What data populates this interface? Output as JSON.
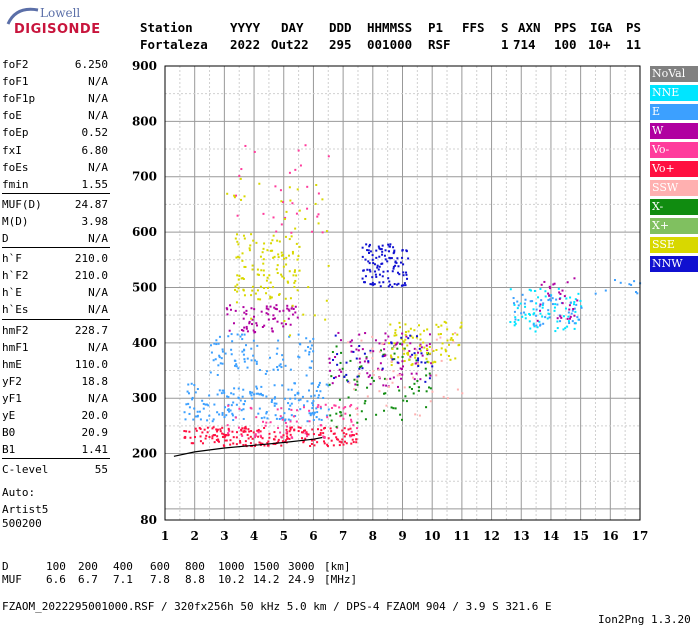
{
  "logo": {
    "brand": "Lowell",
    "product": "DIGISONDE"
  },
  "header": {
    "labels": [
      "Station",
      "YYYY",
      "DAY",
      "DDD",
      "HHMMSS",
      "P1",
      "FFS",
      "S",
      "AXN",
      "PPS",
      "IGA",
      "PS"
    ],
    "values": [
      "Fortaleza",
      "2022",
      "Out22",
      "295",
      "001000",
      "RSF",
      "",
      "1",
      "714",
      "100",
      "10+",
      "11"
    ]
  },
  "params": [
    {
      "k": "foF2",
      "v": "6.250"
    },
    {
      "k": "foF1",
      "v": "N/A"
    },
    {
      "k": "foF1p",
      "v": "N/A"
    },
    {
      "k": "foE",
      "v": "N/A"
    },
    {
      "k": "foEp",
      "v": "0.52"
    },
    {
      "k": "fxI",
      "v": "6.80"
    },
    {
      "k": "foEs",
      "v": "N/A"
    },
    {
      "k": "fmin",
      "v": "1.55"
    },
    {
      "k": "MUF(D)",
      "v": "24.87"
    },
    {
      "k": "M(D)",
      "v": "3.98"
    },
    {
      "k": "D",
      "v": "N/A"
    },
    {
      "k": "h`F",
      "v": "210.0"
    },
    {
      "k": "h`F2",
      "v": "210.0"
    },
    {
      "k": "h`E",
      "v": "N/A"
    },
    {
      "k": "h`Es",
      "v": "N/A"
    },
    {
      "k": "hmF2",
      "v": "228.7"
    },
    {
      "k": "hmF1",
      "v": "N/A"
    },
    {
      "k": "hmE",
      "v": "110.0"
    },
    {
      "k": "yF2",
      "v": "18.8"
    },
    {
      "k": "yF1",
      "v": "N/A"
    },
    {
      "k": "yE",
      "v": "20.0"
    },
    {
      "k": "B0",
      "v": "20.9"
    },
    {
      "k": "B1",
      "v": "1.41"
    },
    {
      "k": "C-level",
      "v": "55"
    }
  ],
  "auto": [
    "Auto:",
    "Artist5",
    "500200"
  ],
  "legend": [
    {
      "label": "NoVal",
      "color": "#808080"
    },
    {
      "label": "NNE",
      "color": "#00e5ff"
    },
    {
      "label": "E",
      "color": "#3ca0ff"
    },
    {
      "label": "W",
      "color": "#b000a0"
    },
    {
      "label": "Vo-",
      "color": "#ff3c9c"
    },
    {
      "label": "Vo+",
      "color": "#ff1040"
    },
    {
      "label": "SSW",
      "color": "#ffb0b0"
    },
    {
      "label": "X-",
      "color": "#108c10"
    },
    {
      "label": "X+",
      "color": "#80c060"
    },
    {
      "label": "SSE",
      "color": "#d8d800"
    },
    {
      "label": "NNW",
      "color": "#1010d0"
    }
  ],
  "footer": {
    "d_label": "D",
    "d_values": [
      "100",
      "200",
      "400",
      "600",
      "800",
      "1000",
      "1500",
      "3000",
      "[km]"
    ],
    "muf_label": "MUF",
    "muf_values": [
      "6.6",
      "6.7",
      "7.1",
      "7.8",
      "8.8",
      "10.2",
      "14.2",
      "24.9",
      "[MHz]"
    ],
    "file_line": "FZAOM_2022295001000.RSF / 320fx256h 50 kHz 5.0 km / DPS-4 FZAOM 904 / 3.9 S 321.6 E",
    "version": "Ion2Png 1.3.20"
  },
  "chart_data": {
    "type": "scatter",
    "xlim": [
      1,
      17
    ],
    "ylim": [
      80,
      900
    ],
    "x_ticks": [
      1,
      2,
      3,
      4,
      5,
      6,
      7,
      8,
      9,
      10,
      11,
      12,
      13,
      14,
      15,
      16,
      17
    ],
    "y_ticks": [
      80,
      200,
      300,
      400,
      500,
      600,
      700,
      800,
      900
    ],
    "grid": true,
    "legend_position": "right",
    "trace": [
      [
        1.3,
        195
      ],
      [
        2,
        203
      ],
      [
        3,
        210
      ],
      [
        4,
        215
      ],
      [
        5,
        220
      ],
      [
        6,
        226
      ],
      [
        6.3,
        229
      ]
    ],
    "clusters": [
      {
        "color": "#3ca0ff",
        "x": [
          1.6,
          6.5
        ],
        "y": [
          260,
          330
        ],
        "n": 180
      },
      {
        "color": "#3ca0ff",
        "x": [
          2.5,
          6.0
        ],
        "y": [
          340,
          420
        ],
        "n": 90
      },
      {
        "color": "#ff1040",
        "x": [
          1.6,
          7.5
        ],
        "y": [
          215,
          250
        ],
        "n": 220
      },
      {
        "color": "#ff3c9c",
        "x": [
          3.0,
          7.5
        ],
        "y": [
          230,
          290
        ],
        "n": 70
      },
      {
        "color": "#b000a0",
        "x": [
          3.0,
          5.5
        ],
        "y": [
          420,
          470
        ],
        "n": 70
      },
      {
        "color": "#d8d800",
        "x": [
          3.3,
          5.5
        ],
        "y": [
          480,
          600
        ],
        "n": 110
      },
      {
        "color": "#108c10",
        "x": [
          6.5,
          10
        ],
        "y": [
          250,
          400
        ],
        "n": 80
      },
      {
        "color": "#b000a0",
        "x": [
          6.5,
          10
        ],
        "y": [
          320,
          420
        ],
        "n": 90
      },
      {
        "color": "#d8d800",
        "x": [
          8.5,
          11
        ],
        "y": [
          360,
          440
        ],
        "n": 90
      },
      {
        "color": "#1010d0",
        "x": [
          7.6,
          9.2
        ],
        "y": [
          500,
          580
        ],
        "n": 110
      },
      {
        "color": "#1010d0",
        "x": [
          6.5,
          10
        ],
        "y": [
          330,
          420
        ],
        "n": 40
      },
      {
        "color": "#ffb0b0",
        "x": [
          7,
          11
        ],
        "y": [
          270,
          420
        ],
        "n": 50
      },
      {
        "color": "#00e5ff",
        "x": [
          12.6,
          15
        ],
        "y": [
          420,
          500
        ],
        "n": 70
      },
      {
        "color": "#3ca0ff",
        "x": [
          12.6,
          15
        ],
        "y": [
          430,
          490
        ],
        "n": 50
      },
      {
        "color": "#b000a0",
        "x": [
          13.5,
          15
        ],
        "y": [
          440,
          520
        ],
        "n": 30
      },
      {
        "color": "#3ca0ff",
        "x": [
          15,
          17
        ],
        "y": [
          490,
          520
        ],
        "n": 10
      },
      {
        "color": "#ff3c9c",
        "x": [
          3,
          6.5
        ],
        "y": [
          600,
          760
        ],
        "n": 30
      },
      {
        "color": "#d8d800",
        "x": [
          3,
          6.5
        ],
        "y": [
          400,
          700
        ],
        "n": 40
      }
    ]
  }
}
